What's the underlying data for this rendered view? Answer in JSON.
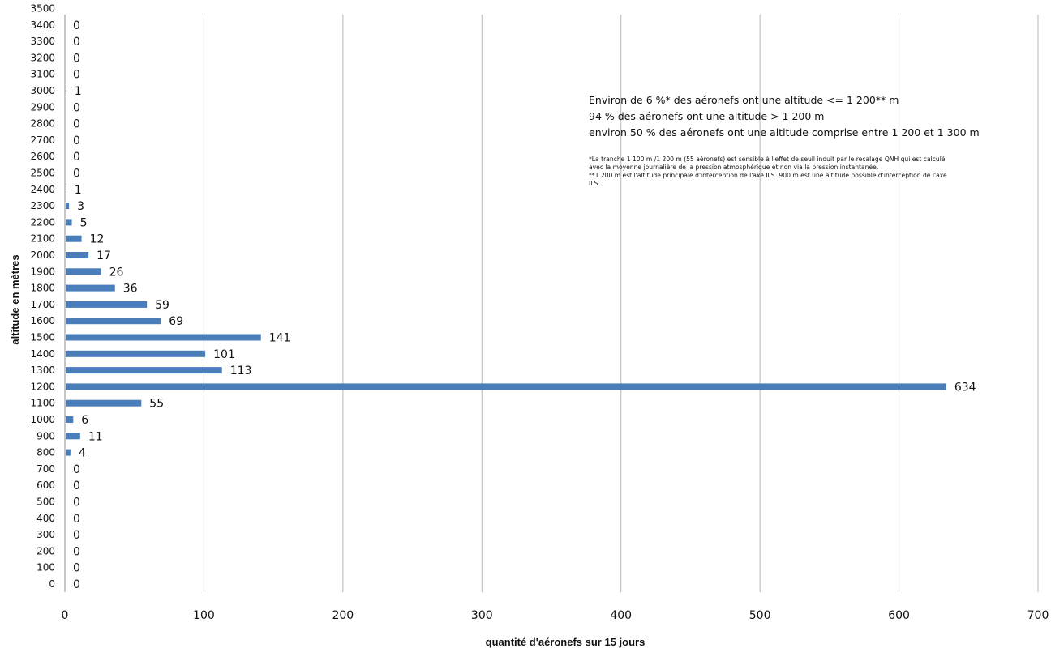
{
  "chart_data": {
    "type": "bar",
    "orientation": "horizontal",
    "title": "",
    "xlabel": "quantité d'aéronefs sur 15 jours",
    "ylabel": "altitude en mètres",
    "xlim": [
      0,
      700
    ],
    "x_ticks": [
      0,
      100,
      200,
      300,
      400,
      500,
      600,
      700
    ],
    "grid": "vertical",
    "bar_color": "#4a7ebb",
    "categories": [
      "0",
      "100",
      "200",
      "300",
      "400",
      "500",
      "600",
      "700",
      "800",
      "900",
      "1000",
      "1100",
      "1200",
      "1300",
      "1400",
      "1500",
      "1600",
      "1700",
      "1800",
      "1900",
      "2000",
      "2100",
      "2200",
      "2300",
      "2400",
      "2500",
      "2600",
      "2700",
      "2800",
      "2900",
      "3000",
      "3100",
      "3200",
      "3300",
      "3400",
      "3500"
    ],
    "values": [
      0,
      0,
      0,
      0,
      0,
      0,
      0,
      0,
      4,
      11,
      6,
      55,
      634,
      113,
      101,
      141,
      69,
      59,
      36,
      26,
      17,
      12,
      5,
      3,
      1,
      0,
      0,
      0,
      0,
      0,
      1,
      0,
      0,
      0,
      0,
      null
    ],
    "annotations": {
      "lines": [
        "Environ de 6 %* des aéronefs ont une altitude <= 1 200** m",
        "94 % des aéronefs ont une altitude > 1 200 m",
        "environ 50 % des aéronefs ont une altitude comprise entre 1 200 et 1 300 m"
      ],
      "notes": [
        "*La tranche 1 100 m /1 200 m (55 aéronefs) est sensible à l'effet de seuil induit par le recalage QNH qui est calculé",
        "avec la moyenne journalière de la pression atmosphérique et non via la pression instantanée.",
        "**1 200 m est l'altitude principale d'interception de l'axe ILS. 900 m est une altitude possible d'interception de l'axe",
        "ILS."
      ]
    }
  }
}
